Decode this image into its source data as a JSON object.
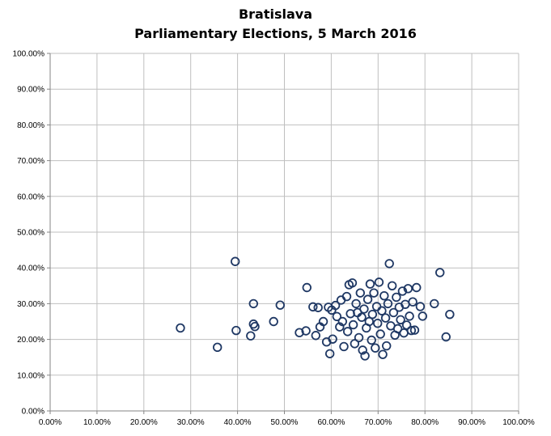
{
  "colors": {
    "marker_stroke": "#1f3864",
    "gridline": "#bfbfbf",
    "axis": "#868686",
    "background": "#ffffff"
  },
  "chart_data": {
    "type": "scatter",
    "title": "Bratislava",
    "subtitle": "Parliamentary Elections, 5 March 2016",
    "xlabel": "",
    "ylabel": "",
    "xlim": [
      0,
      1
    ],
    "ylim": [
      0,
      1
    ],
    "grid": true,
    "legend": "none",
    "marker": "hollow-circle",
    "x_ticks": [
      "0.00%",
      "10.00%",
      "20.00%",
      "30.00%",
      "40.00%",
      "50.00%",
      "60.00%",
      "70.00%",
      "80.00%",
      "90.00%",
      "100.00%"
    ],
    "y_ticks": [
      "0.00%",
      "10.00%",
      "20.00%",
      "30.00%",
      "40.00%",
      "50.00%",
      "60.00%",
      "70.00%",
      "80.00%",
      "90.00%",
      "100.00%"
    ],
    "series": [
      {
        "points": [
          [
            0.278,
            0.232
          ],
          [
            0.357,
            0.178
          ],
          [
            0.395,
            0.418
          ],
          [
            0.397,
            0.225
          ],
          [
            0.428,
            0.21
          ],
          [
            0.434,
            0.3
          ],
          [
            0.434,
            0.243
          ],
          [
            0.437,
            0.236
          ],
          [
            0.477,
            0.25
          ],
          [
            0.491,
            0.296
          ],
          [
            0.532,
            0.219
          ],
          [
            0.546,
            0.224
          ],
          [
            0.548,
            0.345
          ],
          [
            0.561,
            0.291
          ],
          [
            0.567,
            0.211
          ],
          [
            0.572,
            0.289
          ],
          [
            0.576,
            0.235
          ],
          [
            0.583,
            0.25
          ],
          [
            0.59,
            0.193
          ],
          [
            0.594,
            0.29
          ],
          [
            0.597,
            0.16
          ],
          [
            0.601,
            0.282
          ],
          [
            0.603,
            0.201
          ],
          [
            0.609,
            0.295
          ],
          [
            0.612,
            0.264
          ],
          [
            0.618,
            0.235
          ],
          [
            0.621,
            0.31
          ],
          [
            0.624,
            0.25
          ],
          [
            0.627,
            0.18
          ],
          [
            0.633,
            0.32
          ],
          [
            0.635,
            0.222
          ],
          [
            0.638,
            0.353
          ],
          [
            0.641,
            0.272
          ],
          [
            0.645,
            0.358
          ],
          [
            0.647,
            0.241
          ],
          [
            0.65,
            0.188
          ],
          [
            0.653,
            0.3
          ],
          [
            0.656,
            0.275
          ],
          [
            0.659,
            0.205
          ],
          [
            0.662,
            0.33
          ],
          [
            0.665,
            0.262
          ],
          [
            0.667,
            0.17
          ],
          [
            0.67,
            0.285
          ],
          [
            0.672,
            0.154
          ],
          [
            0.675,
            0.232
          ],
          [
            0.678,
            0.312
          ],
          [
            0.681,
            0.25
          ],
          [
            0.683,
            0.355
          ],
          [
            0.686,
            0.198
          ],
          [
            0.688,
            0.27
          ],
          [
            0.691,
            0.33
          ],
          [
            0.694,
            0.176
          ],
          [
            0.697,
            0.292
          ],
          [
            0.699,
            0.245
          ],
          [
            0.702,
            0.36
          ],
          [
            0.705,
            0.215
          ],
          [
            0.708,
            0.28
          ],
          [
            0.71,
            0.158
          ],
          [
            0.713,
            0.322
          ],
          [
            0.716,
            0.26
          ],
          [
            0.718,
            0.182
          ],
          [
            0.721,
            0.3
          ],
          [
            0.724,
            0.412
          ],
          [
            0.727,
            0.238
          ],
          [
            0.73,
            0.35
          ],
          [
            0.733,
            0.275
          ],
          [
            0.736,
            0.212
          ],
          [
            0.739,
            0.318
          ],
          [
            0.742,
            0.23
          ],
          [
            0.745,
            0.29
          ],
          [
            0.748,
            0.255
          ],
          [
            0.752,
            0.335
          ],
          [
            0.755,
            0.218
          ],
          [
            0.758,
            0.298
          ],
          [
            0.761,
            0.24
          ],
          [
            0.764,
            0.342
          ],
          [
            0.767,
            0.265
          ],
          [
            0.771,
            0.225
          ],
          [
            0.774,
            0.305
          ],
          [
            0.778,
            0.226
          ],
          [
            0.782,
            0.345
          ],
          [
            0.79,
            0.292
          ],
          [
            0.795,
            0.265
          ],
          [
            0.82,
            0.3
          ],
          [
            0.832,
            0.387
          ],
          [
            0.845,
            0.207
          ],
          [
            0.853,
            0.27
          ]
        ]
      }
    ]
  }
}
